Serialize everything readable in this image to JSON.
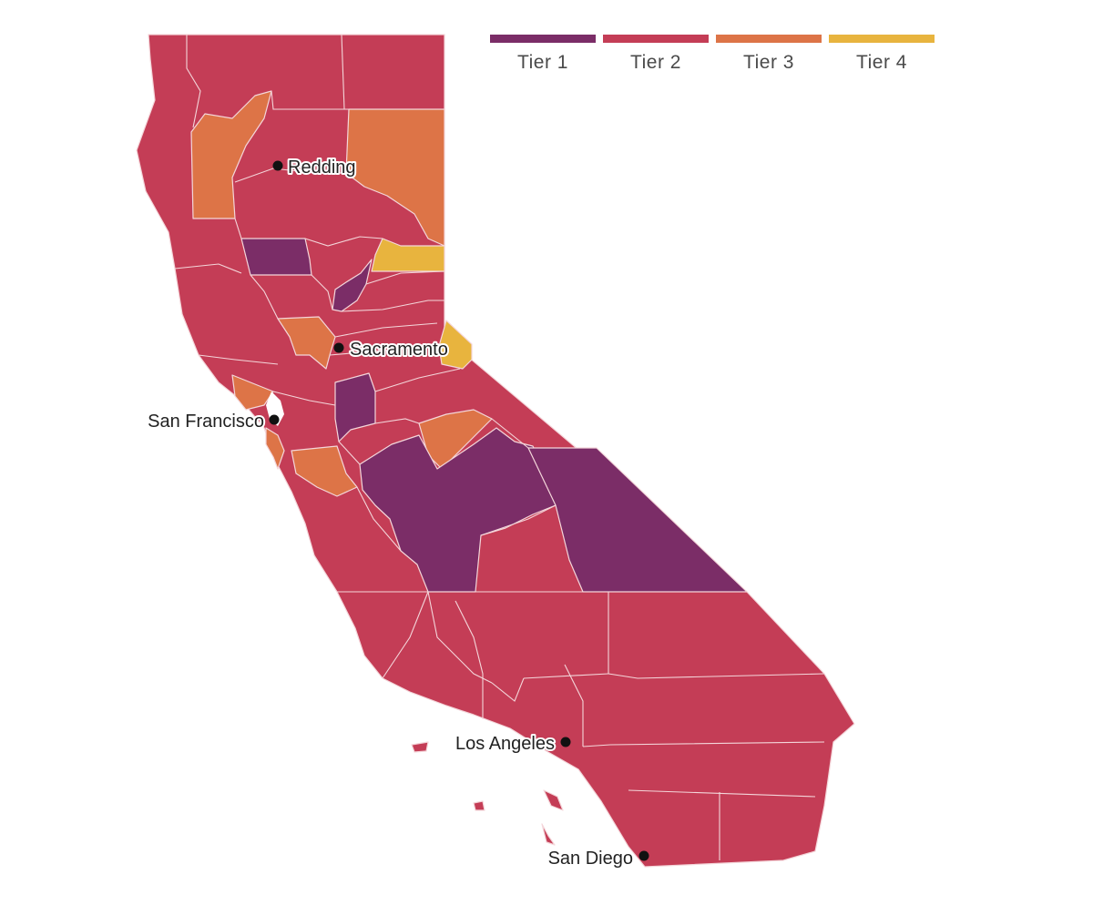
{
  "legend": {
    "items": [
      {
        "label": "Tier 1",
        "color": "#7b2d67"
      },
      {
        "label": "Tier 2",
        "color": "#c43d56"
      },
      {
        "label": "Tier 3",
        "color": "#dd7447"
      },
      {
        "label": "Tier 4",
        "color": "#e8b43e"
      }
    ]
  },
  "cities": {
    "redding": "Redding",
    "sacramento": "Sacramento",
    "san_francisco": "San Francisco",
    "los_angeles": "Los Angeles",
    "san_diego": "San Diego"
  },
  "colors": {
    "tier1": "#7b2d67",
    "tier2": "#c43d56",
    "tier3": "#dd7447",
    "tier4": "#e8b43e",
    "county_border": "#f4d6da",
    "background": "#ffffff"
  }
}
